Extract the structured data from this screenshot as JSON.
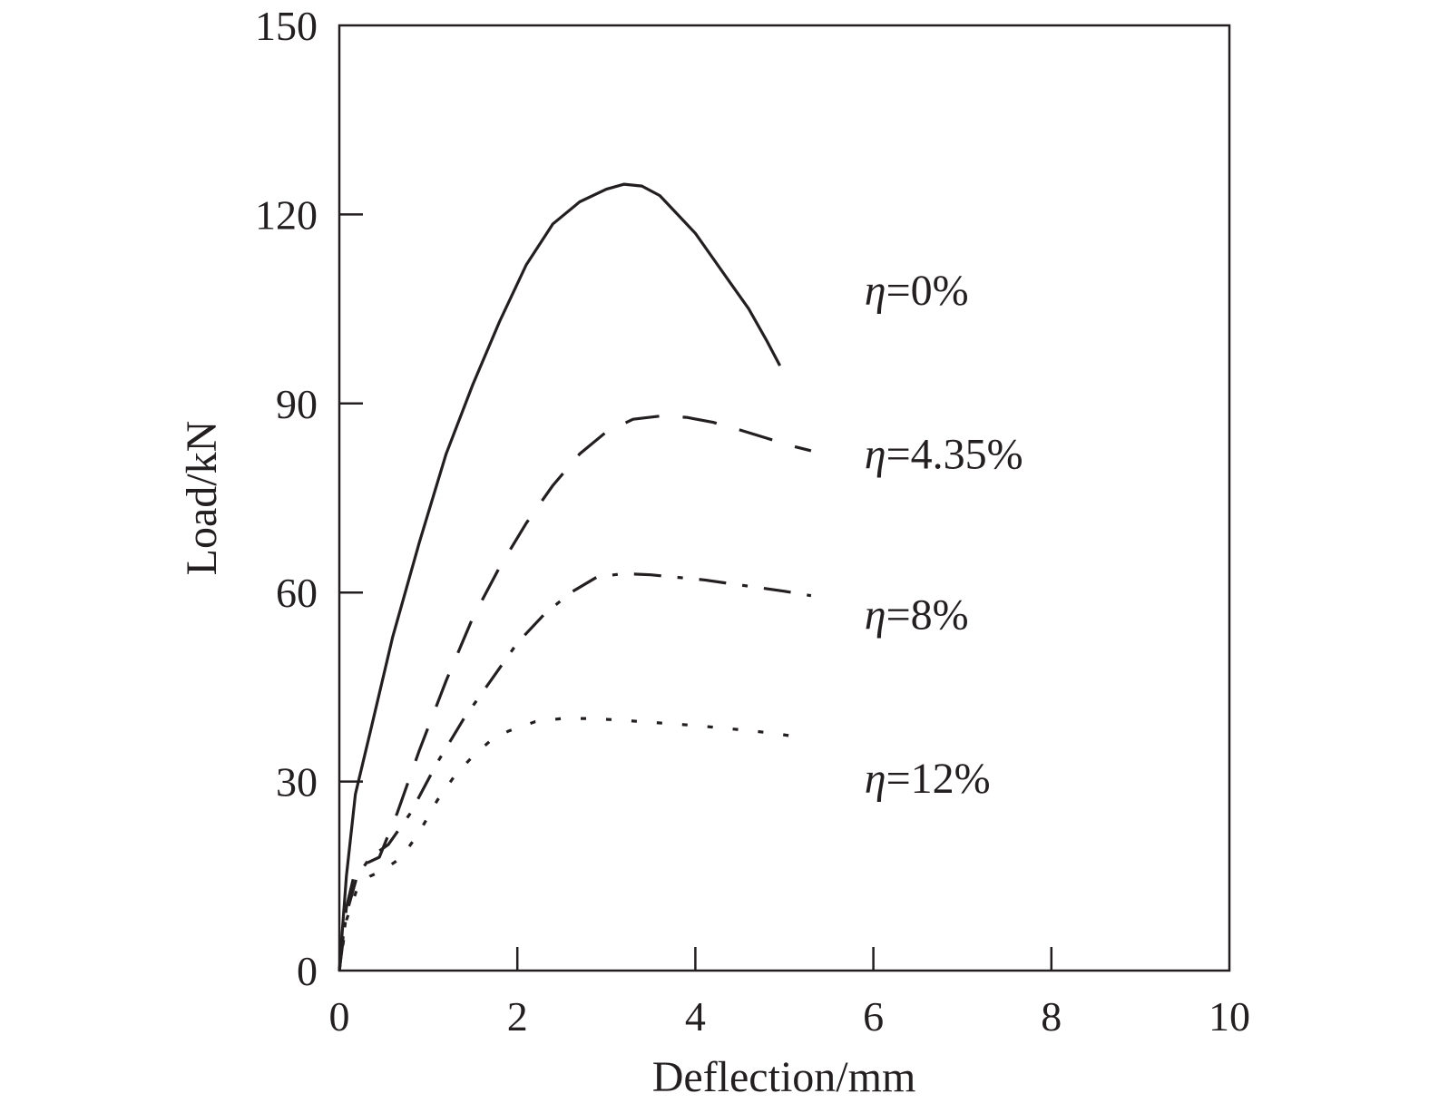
{
  "chart_data": {
    "type": "line",
    "title": "",
    "xlabel": "Deflection/mm",
    "ylabel": "Load/kN",
    "xlim": [
      0,
      10
    ],
    "ylim": [
      0,
      150
    ],
    "xticks": [
      0,
      2,
      4,
      6,
      8,
      10
    ],
    "yticks": [
      0,
      30,
      60,
      90,
      120,
      150
    ],
    "xtick_labels": [
      "0",
      "2",
      "4",
      "6",
      "8",
      "10"
    ],
    "ytick_labels": [
      "0",
      "30",
      "60",
      "90",
      "120",
      "150"
    ],
    "grid": false,
    "legend": "inline labels to the right of curves",
    "colors": {
      "line": "#231f20",
      "axis": "#231f20"
    },
    "series": [
      {
        "name": "η=0%",
        "eta_symbol": "η",
        "eta_value": "=0%",
        "style": "solid",
        "x": [
          0,
          0.08,
          0.18,
          0.35,
          0.6,
          0.9,
          1.2,
          1.5,
          1.8,
          2.1,
          2.4,
          2.7,
          3.0,
          3.2,
          3.4,
          3.6,
          3.8,
          4.0,
          4.2,
          4.4,
          4.6,
          4.8,
          4.95
        ],
        "y": [
          0,
          15,
          28,
          38,
          53,
          68,
          82,
          93,
          103,
          112,
          118.5,
          122,
          124,
          124.8,
          124.5,
          123,
          120,
          117,
          113,
          109,
          105,
          100,
          96
        ]
      },
      {
        "name": "η=4.35%",
        "eta_symbol": "η",
        "eta_value": "=4.35%",
        "style": "dashed",
        "x": [
          0,
          0.08,
          0.18,
          0.3,
          0.45,
          0.65,
          0.9,
          1.2,
          1.5,
          1.8,
          2.1,
          2.4,
          2.7,
          3.0,
          3.3,
          3.6,
          3.9,
          4.2,
          4.5,
          4.8,
          5.1,
          5.3
        ],
        "y": [
          0,
          10,
          16,
          17,
          18,
          25,
          35,
          46,
          56,
          64,
          71,
          77,
          82,
          85.5,
          87.5,
          88,
          87.8,
          87,
          85.8,
          84.5,
          83.2,
          82.5
        ]
      },
      {
        "name": "η=8%",
        "eta_symbol": "η",
        "eta_value": "=8%",
        "style": "dashdot",
        "x": [
          0,
          0.08,
          0.2,
          0.35,
          0.55,
          0.8,
          1.1,
          1.4,
          1.7,
          2.0,
          2.3,
          2.6,
          2.9,
          3.2,
          3.5,
          3.8,
          4.1,
          4.4,
          4.7,
          5.0,
          5.3
        ],
        "y": [
          0,
          9,
          15,
          18,
          20,
          25,
          33,
          40,
          46,
          52,
          56.5,
          60,
          62.5,
          63,
          62.8,
          62.4,
          62,
          61.4,
          60.8,
          60.2,
          59.5
        ]
      },
      {
        "name": "η=12%",
        "eta_symbol": "η",
        "eta_value": "=12%",
        "style": "dotted",
        "x": [
          0,
          0.08,
          0.2,
          0.35,
          0.5,
          0.7,
          0.9,
          1.1,
          1.3,
          1.5,
          1.7,
          1.9,
          2.2,
          2.5,
          2.8,
          3.1,
          3.4,
          3.7,
          4.0,
          4.3,
          4.6,
          4.9,
          5.2
        ],
        "y": [
          0,
          8,
          13,
          15,
          16,
          18,
          22,
          27,
          31,
          34,
          36.5,
          38,
          39.5,
          40,
          40,
          39.8,
          39.5,
          39.2,
          38.9,
          38.5,
          38.1,
          37.6,
          37
        ]
      }
    ],
    "series_label_anchor": [
      {
        "x": 5.9,
        "y": 108
      },
      {
        "x": 5.9,
        "y": 82
      },
      {
        "x": 5.9,
        "y": 56.5
      },
      {
        "x": 5.9,
        "y": 30.5
      }
    ]
  }
}
